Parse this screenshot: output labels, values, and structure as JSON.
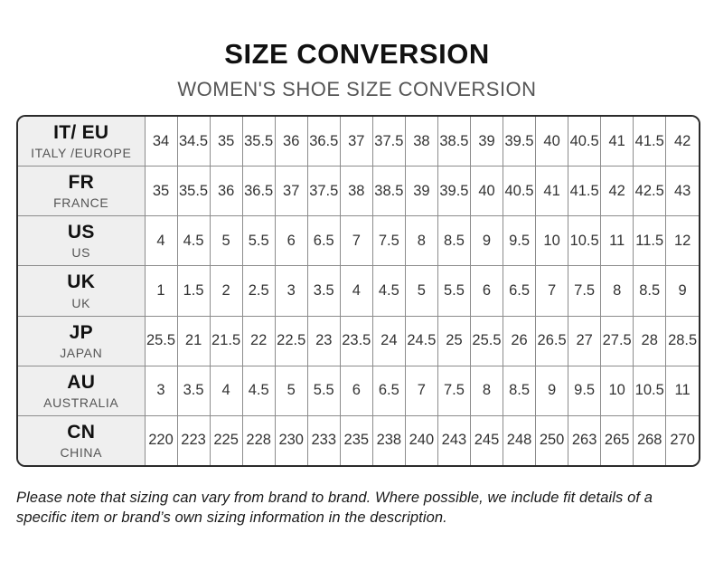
{
  "header": {
    "title": "SIZE CONVERSION",
    "subtitle": "WOMEN'S SHOE SIZE CONVERSION"
  },
  "table": {
    "rows": [
      {
        "code": "IT/ EU",
        "region": "ITALY /EUROPE",
        "values": [
          "34",
          "34.5",
          "35",
          "35.5",
          "36",
          "36.5",
          "37",
          "37.5",
          "38",
          "38.5",
          "39",
          "39.5",
          "40",
          "40.5",
          "41",
          "41.5",
          "42"
        ]
      },
      {
        "code": "FR",
        "region": "FRANCE",
        "values": [
          "35",
          "35.5",
          "36",
          "36.5",
          "37",
          "37.5",
          "38",
          "38.5",
          "39",
          "39.5",
          "40",
          "40.5",
          "41",
          "41.5",
          "42",
          "42.5",
          "43"
        ]
      },
      {
        "code": "US",
        "region": "US",
        "values": [
          "4",
          "4.5",
          "5",
          "5.5",
          "6",
          "6.5",
          "7",
          "7.5",
          "8",
          "8.5",
          "9",
          "9.5",
          "10",
          "10.5",
          "11",
          "11.5",
          "12"
        ]
      },
      {
        "code": "UK",
        "region": "UK",
        "values": [
          "1",
          "1.5",
          "2",
          "2.5",
          "3",
          "3.5",
          "4",
          "4.5",
          "5",
          "5.5",
          "6",
          "6.5",
          "7",
          "7.5",
          "8",
          "8.5",
          "9"
        ]
      },
      {
        "code": "JP",
        "region": "JAPAN",
        "values": [
          "25.5",
          "21",
          "21.5",
          "22",
          "22.5",
          "23",
          "23.5",
          "24",
          "24.5",
          "25",
          "25.5",
          "26",
          "26.5",
          "27",
          "27.5",
          "28",
          "28.5"
        ]
      },
      {
        "code": "AU",
        "region": "AUSTRALIA",
        "values": [
          "3",
          "3.5",
          "4",
          "4.5",
          "5",
          "5.5",
          "6",
          "6.5",
          "7",
          "7.5",
          "8",
          "8.5",
          "9",
          "9.5",
          "10",
          "10.5",
          "11"
        ]
      },
      {
        "code": "CN",
        "region": "CHINA",
        "values": [
          "220",
          "223",
          "225",
          "228",
          "230",
          "233",
          "235",
          "238",
          "240",
          "243",
          "245",
          "248",
          "250",
          "263",
          "265",
          "268",
          "270"
        ]
      }
    ]
  },
  "footer": {
    "note": "Please note that sizing can vary from brand to brand. Where possible, we include fit details of a specific item or brand’s own sizing information in the description."
  },
  "colors": {
    "title": "#111111",
    "subtitle": "#555555",
    "table_border": "#2b2b2b",
    "grid_line": "#8c8c8c",
    "header_column_bg": "#efefef",
    "cell_text": "#333333"
  }
}
